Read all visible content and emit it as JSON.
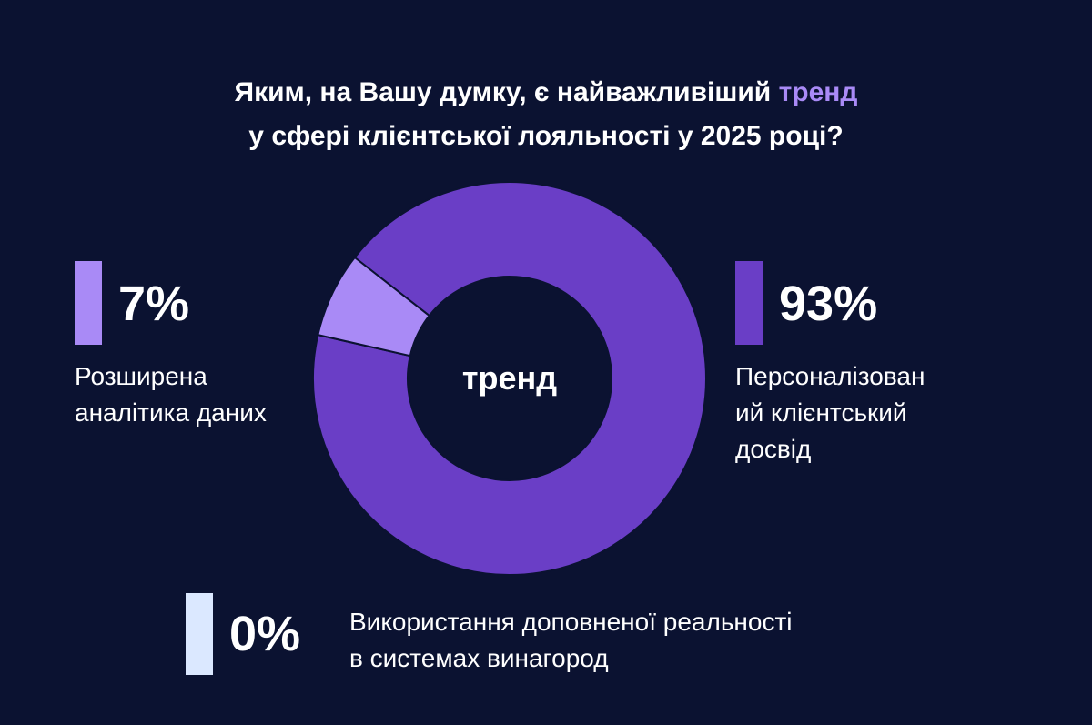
{
  "title": {
    "line1_before": "Яким, на Вашу думку, є найважливіший ",
    "line1_accent": "тренд",
    "line2": "у сфері клієнтської лояльності у 2025 році?"
  },
  "center_label": "тренд",
  "colors": {
    "background": "#0b1231",
    "accent": "#a98af6",
    "personalized": "#6a3ec6",
    "analytics": "#a98af6",
    "ar": "#dbe8ff"
  },
  "legend": {
    "analytics": {
      "value_label": "7%",
      "lines": [
        "Розширена",
        "аналітика даних"
      ]
    },
    "personalized": {
      "value_label": "93%",
      "lines": [
        "Персоналізован",
        "ий клієнтський",
        "досвід"
      ]
    },
    "ar": {
      "value_label": "0%",
      "lines": [
        "Використання доповненої реальності",
        "в системах винагород"
      ]
    }
  },
  "chart_data": {
    "type": "pie",
    "title": "Яким, на Вашу думку, є найважливіший тренд у сфері клієнтської лояльності у 2025 році?",
    "labels": [
      "Персоналізований клієнтський досвід",
      "Розширена аналітика даних",
      "Використання доповненої реальності в системах винагород"
    ],
    "values": [
      93,
      7,
      0
    ],
    "unit": "%",
    "colors": [
      "#6a3ec6",
      "#a98af6",
      "#dbe8ff"
    ],
    "donut": true
  }
}
